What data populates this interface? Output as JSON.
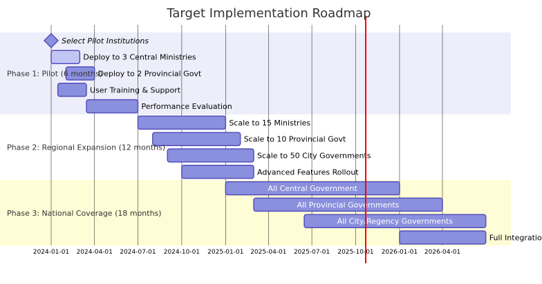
{
  "title": "Target Implementation Roadmap",
  "today": "2025-10-22",
  "colors": {
    "section_odd": "#eeeefb",
    "section_even": "#ffffff",
    "section_third": "#fffdd6",
    "task_fill": "#8a90dd",
    "task_stroke": "#534fbc",
    "active_fill": "#c2c6f4",
    "grid": "#000000",
    "today_line": "#ff0000"
  },
  "chart_data": {
    "type": "gantt",
    "title": "Target Implementation Roadmap",
    "axis_ticks": [
      "2024-01-01",
      "2024-04-01",
      "2024-07-01",
      "2024-10-01",
      "2025-01-01",
      "2025-04-01",
      "2025-07-01",
      "2025-10-01",
      "2026-01-01",
      "2026-04-01"
    ],
    "sections": [
      {
        "name": "Phase 1: Pilot (6 months)",
        "tasks": [
          {
            "name": "Select Pilot Institutions",
            "start": "2024-01-01",
            "end": "2024-01-01",
            "milestone": true
          },
          {
            "name": "Deploy to 3 Central Ministries",
            "start": "2024-01-01",
            "end": "2024-03-01",
            "active": true
          },
          {
            "name": "Deploy to 2 Provincial Govt",
            "start": "2024-02-01",
            "end": "2024-04-01"
          },
          {
            "name": "User Training & Support",
            "start": "2024-01-15",
            "end": "2024-03-15"
          },
          {
            "name": "Performance Evaluation",
            "start": "2024-03-15",
            "end": "2024-07-01"
          }
        ]
      },
      {
        "name": "Phase 2: Regional Expansion (12 months)",
        "tasks": [
          {
            "name": "Scale to 15 Ministries",
            "start": "2024-07-01",
            "end": "2025-01-01"
          },
          {
            "name": "Scale to 10 Provincial Govt",
            "start": "2024-08-01",
            "end": "2025-02-01"
          },
          {
            "name": "Scale to 50 City Governments",
            "start": "2024-09-01",
            "end": "2025-03-01"
          },
          {
            "name": "Advanced Features Rollout",
            "start": "2024-10-01",
            "end": "2025-03-01"
          }
        ]
      },
      {
        "name": "Phase 3: National Coverage (18 months)",
        "tasks": [
          {
            "name": "All Central Government",
            "start": "2025-01-01",
            "end": "2026-01-01"
          },
          {
            "name": "All Provincial Governments",
            "start": "2025-03-01",
            "end": "2026-04-01"
          },
          {
            "name": "All City/Regency Governments",
            "start": "2025-06-15",
            "end": "2026-07-01"
          },
          {
            "name": "Full Integration & Optimization",
            "start": "2026-01-01",
            "end": "2026-07-01"
          }
        ]
      }
    ]
  }
}
